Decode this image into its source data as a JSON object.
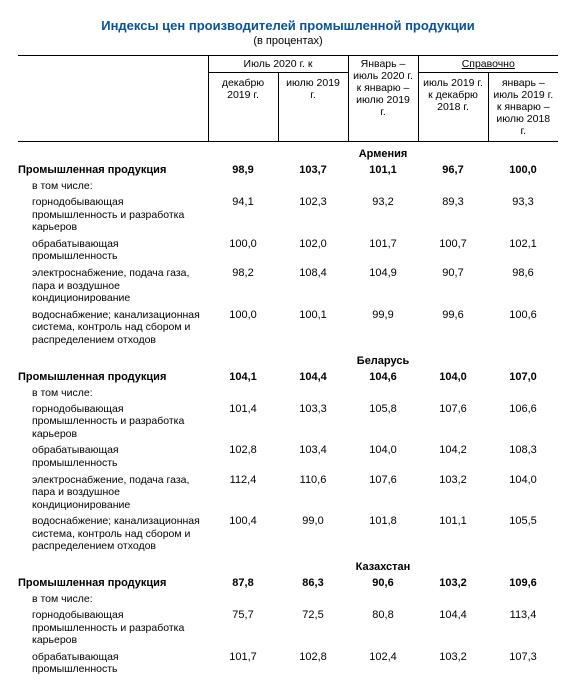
{
  "title": "Индексы цен производителей промышленной продукции",
  "subtitle": "(в процентах)",
  "headers": {
    "group1": "Июль 2020 г. к",
    "group1_a": "декабрю 2019 г.",
    "group1_b": "июлю 2019 г.",
    "col3": "Январь – июль 2020 г. к январю – июлю 2019 г.",
    "group3": "Справочно",
    "group3_a": "июль 2019 г. к декабрю 2018 г.",
    "group3_b": "январь – июль 2019 г. к январю – июлю 2018 г."
  },
  "labels": {
    "prom": "Промышленная продукция",
    "incl": "в том числе:",
    "mining": "горнодобывающая промышленность и разработка карьеров",
    "manuf": "обрабатывающая промышленность",
    "electro": "электроснабжение, подача газа, пара и воздушное кондиционирование",
    "water": "водоснабжение; канализационная система, контроль над сбором и распределением отходов"
  },
  "countries": {
    "armenia": {
      "name": "Армения",
      "prom": [
        "98,9",
        "103,7",
        "101,1",
        "96,7",
        "100,0"
      ],
      "mining": [
        "94,1",
        "102,3",
        "93,2",
        "89,3",
        "93,3"
      ],
      "manuf": [
        "100,0",
        "102,0",
        "101,7",
        "100,7",
        "102,1"
      ],
      "electro": [
        "98,2",
        "108,4",
        "104,9",
        "90,7",
        "98,6"
      ],
      "water": [
        "100,0",
        "100,1",
        "99,9",
        "99,6",
        "100,6"
      ]
    },
    "belarus": {
      "name": "Беларусь",
      "prom": [
        "104,1",
        "104,4",
        "104,6",
        "104,0",
        "107,0"
      ],
      "mining": [
        "101,4",
        "103,3",
        "105,8",
        "107,6",
        "106,6"
      ],
      "manuf": [
        "102,8",
        "103,4",
        "104,0",
        "104,2",
        "108,3"
      ],
      "electro": [
        "112,4",
        "110,6",
        "107,6",
        "103,2",
        "104,0"
      ],
      "water": [
        "100,4",
        "99,0",
        "101,8",
        "101,1",
        "105,5"
      ]
    },
    "kazakhstan": {
      "name": "Казахстан",
      "prom": [
        "87,8",
        "86,3",
        "90,6",
        "103,2",
        "109,6"
      ],
      "mining": [
        "75,7",
        "72,5",
        "80,8",
        "104,4",
        "113,4"
      ],
      "manuf": [
        "101,7",
        "102,8",
        "102,4",
        "103,2",
        "107,3"
      ]
    }
  }
}
